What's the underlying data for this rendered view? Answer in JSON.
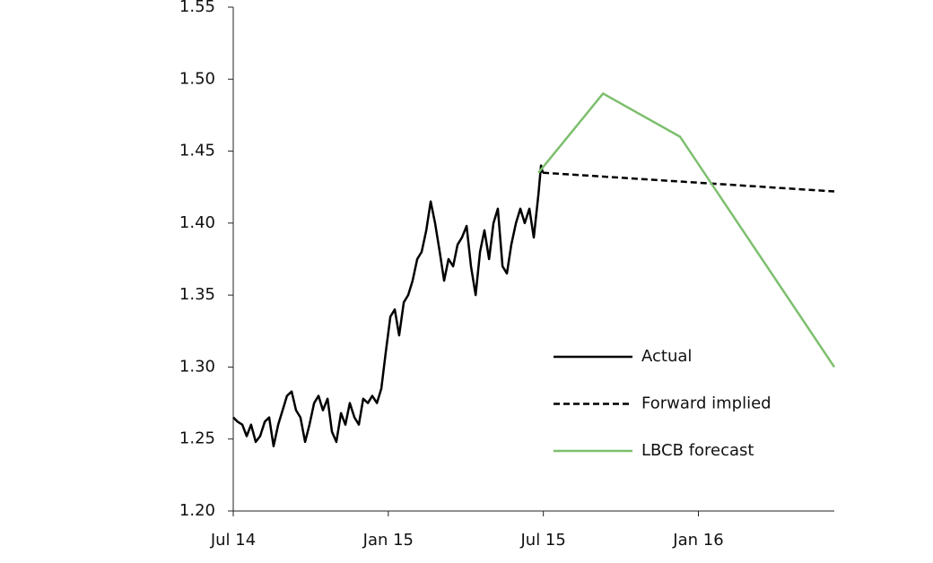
{
  "chart_data": {
    "type": "line",
    "xlim": [
      0,
      23.26
    ],
    "ylim": [
      1.2,
      1.55
    ],
    "xticks": [
      {
        "value": 0,
        "label": "Jul 14"
      },
      {
        "value": 6,
        "label": "Jan 15"
      },
      {
        "value": 12,
        "label": "Jul 15"
      },
      {
        "value": 18,
        "label": "Jan 16"
      }
    ],
    "yticks": [
      {
        "value": 1.2,
        "label": "1.20"
      },
      {
        "value": 1.25,
        "label": "1.25"
      },
      {
        "value": 1.3,
        "label": "1.30"
      },
      {
        "value": 1.35,
        "label": "1.35"
      },
      {
        "value": 1.4,
        "label": "1.40"
      },
      {
        "value": 1.45,
        "label": "1.45"
      },
      {
        "value": 1.5,
        "label": "1.50"
      },
      {
        "value": 1.55,
        "label": "1.55"
      }
    ],
    "legend": "right",
    "series": [
      {
        "name": "Actual",
        "color": "#000000",
        "dash": "solid",
        "x": [
          0,
          0.17,
          0.35,
          0.52,
          0.69,
          0.87,
          1.04,
          1.22,
          1.39,
          1.56,
          1.74,
          1.91,
          2.08,
          2.26,
          2.43,
          2.6,
          2.78,
          2.95,
          3.13,
          3.3,
          3.47,
          3.65,
          3.82,
          3.99,
          4.17,
          4.34,
          4.51,
          4.69,
          4.86,
          5.03,
          5.21,
          5.38,
          5.56,
          5.73,
          5.9,
          6.08,
          6.25,
          6.42,
          6.6,
          6.77,
          6.94,
          7.12,
          7.29,
          7.47,
          7.64,
          7.81,
          7.99,
          8.16,
          8.33,
          8.51,
          8.68,
          8.85,
          9.03,
          9.2,
          9.38,
          9.55,
          9.72,
          9.9,
          10.07,
          10.24,
          10.42,
          10.59,
          10.76,
          10.94,
          11.11,
          11.28,
          11.46,
          11.63,
          11.81,
          11.91,
          11.98
        ],
        "values": [
          1.265,
          1.262,
          1.26,
          1.252,
          1.26,
          1.248,
          1.252,
          1.262,
          1.265,
          1.245,
          1.26,
          1.27,
          1.28,
          1.283,
          1.27,
          1.265,
          1.248,
          1.26,
          1.275,
          1.28,
          1.27,
          1.278,
          1.255,
          1.248,
          1.268,
          1.26,
          1.275,
          1.265,
          1.26,
          1.278,
          1.275,
          1.28,
          1.275,
          1.285,
          1.31,
          1.335,
          1.34,
          1.322,
          1.345,
          1.35,
          1.36,
          1.375,
          1.38,
          1.395,
          1.415,
          1.4,
          1.38,
          1.36,
          1.375,
          1.37,
          1.385,
          1.39,
          1.398,
          1.37,
          1.35,
          1.38,
          1.395,
          1.375,
          1.4,
          1.41,
          1.37,
          1.365,
          1.385,
          1.4,
          1.41,
          1.4,
          1.41,
          1.39,
          1.42,
          1.44,
          1.435
        ]
      },
      {
        "name": "Forward implied",
        "color": "#000000",
        "dash": "dashed",
        "x": [
          11.98,
          23.26
        ],
        "values": [
          1.435,
          1.422
        ]
      },
      {
        "name": "LBCB forecast",
        "color": "#7dbf6e",
        "dash": "solid",
        "x": [
          11.81,
          14.31,
          17.29,
          23.26
        ],
        "values": [
          1.435,
          1.49,
          1.46,
          1.3
        ]
      }
    ]
  }
}
